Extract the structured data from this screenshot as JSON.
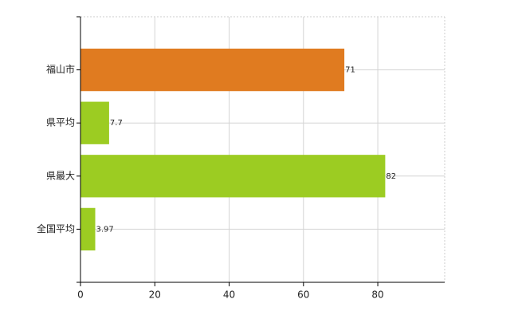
{
  "chart_data": {
    "type": "bar",
    "orientation": "horizontal",
    "categories": [
      "福山市",
      "県平均",
      "県最大",
      "全国平均"
    ],
    "values": [
      71,
      7.7,
      82,
      3.97
    ],
    "colors": [
      "#e07b20",
      "#9ccc22",
      "#9ccc22",
      "#9ccc22"
    ],
    "xlim": [
      0,
      98
    ],
    "xticks": [
      0,
      20,
      40,
      60,
      80
    ],
    "grid": true
  }
}
